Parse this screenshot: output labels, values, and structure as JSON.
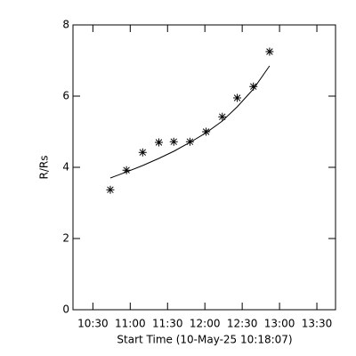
{
  "chart_data": {
    "type": "scatter",
    "x_label": "Start Time (10-May-25 10:18:07)",
    "y_label": "R/Rs",
    "xlim": [
      614,
      825
    ],
    "ylim": [
      0,
      8
    ],
    "xticks": [
      {
        "value": 630,
        "label": "10:30"
      },
      {
        "value": 660,
        "label": "11:00"
      },
      {
        "value": 690,
        "label": "11:30"
      },
      {
        "value": 720,
        "label": "12:00"
      },
      {
        "value": 750,
        "label": "12:30"
      },
      {
        "value": 780,
        "label": "13:00"
      },
      {
        "value": 810,
        "label": "13:30"
      }
    ],
    "yticks": [
      0,
      2,
      4,
      6,
      8
    ],
    "color": "#000000",
    "x": [
      644,
      657,
      670,
      683,
      695,
      708,
      721,
      734,
      746,
      759,
      772
    ],
    "values": [
      3.37,
      3.92,
      4.42,
      4.7,
      4.72,
      4.72,
      5.0,
      5.42,
      5.95,
      6.27,
      7.25
    ],
    "fit": {
      "x": [
        644,
        657,
        670,
        683,
        695,
        708,
        721,
        734,
        746,
        759,
        772
      ],
      "values": [
        3.7,
        3.87,
        4.05,
        4.25,
        4.45,
        4.7,
        4.97,
        5.3,
        5.7,
        6.2,
        6.85
      ]
    }
  }
}
